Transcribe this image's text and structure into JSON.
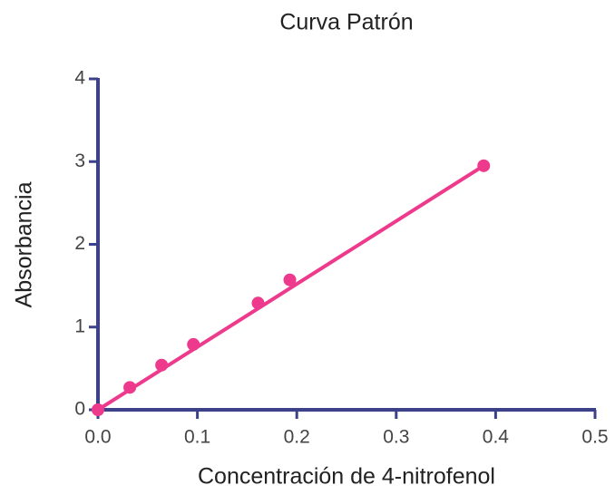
{
  "chart_data": {
    "type": "scatter",
    "title": "Curva Patrón",
    "xlabel": "Concentración de 4-nitrofenol",
    "ylabel": "Absorbancia",
    "x": [
      0,
      0.032,
      0.064,
      0.096,
      0.161,
      0.193,
      0.388
    ],
    "values": [
      0,
      0.27,
      0.54,
      0.79,
      1.29,
      1.57,
      2.95
    ],
    "color": "#ee3a8c",
    "fit": {
      "x": [
        0,
        0.388
      ],
      "values": [
        0,
        2.95
      ]
    },
    "axis_color": "#3d4189",
    "xlim": [
      0,
      0.5
    ],
    "xticks": [
      {
        "value": 0,
        "label": "0.0"
      },
      0.1,
      0.2,
      0.3,
      0.4,
      0.5
    ],
    "ylim": [
      0,
      4
    ],
    "yticks": [
      0,
      1,
      2,
      3,
      4
    ]
  }
}
